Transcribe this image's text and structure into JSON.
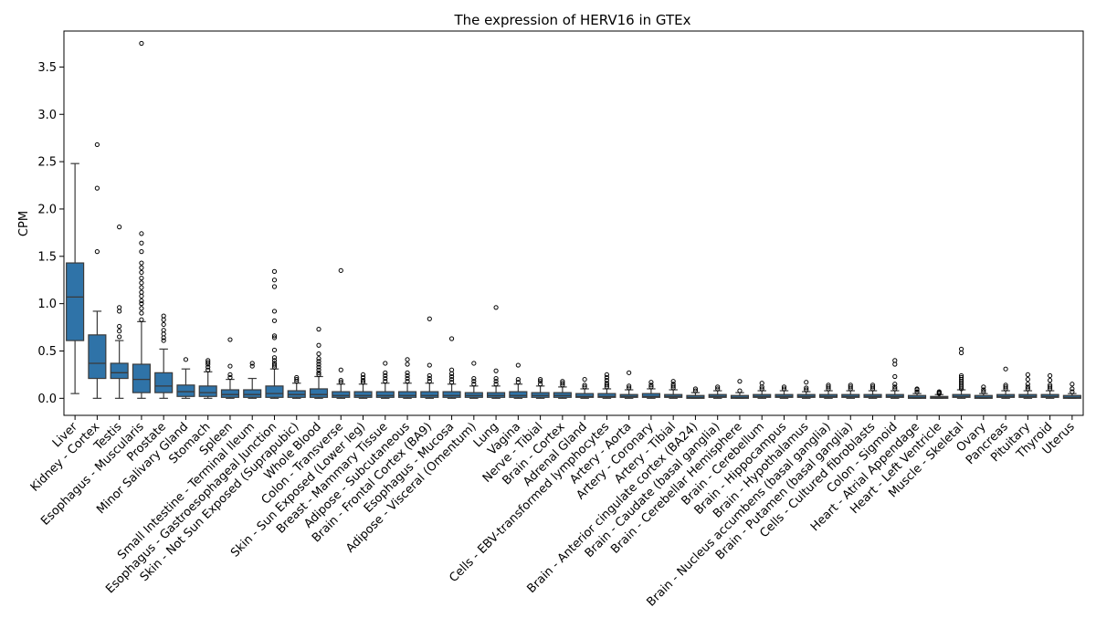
{
  "chart_data": {
    "type": "box",
    "title": "The expression of HERV16 in GTEx",
    "xlabel": "",
    "ylabel": "CPM",
    "ylim": [
      -0.18,
      3.88
    ],
    "yticks": [
      0.0,
      0.5,
      1.0,
      1.5,
      2.0,
      2.5,
      3.0,
      3.5
    ],
    "ytick_labels": [
      "0.0",
      "0.5",
      "1.0",
      "1.5",
      "2.0",
      "2.5",
      "3.0",
      "3.5"
    ],
    "grid": false,
    "box_color": "#2f73a8",
    "categories": [
      "Liver",
      "Kidney - Cortex",
      "Testis",
      "Esophagus - Muscularis",
      "Prostate",
      "Minor Salivary Gland",
      "Stomach",
      "Spleen",
      "Small Intestine - Terminal Ileum",
      "Esophagus - Gastroesophageal Junction",
      "Skin - Not Sun Exposed (Suprapubic)",
      "Whole Blood",
      "Colon - Transverse",
      "Skin - Sun Exposed (Lower leg)",
      "Breast - Mammary Tissue",
      "Adipose - Subcutaneous",
      "Brain - Frontal Cortex (BA9)",
      "Esophagus - Mucosa",
      "Adipose - Visceral (Omentum)",
      "Lung",
      "Vagina",
      "Nerve - Tibial",
      "Brain - Cortex",
      "Adrenal Gland",
      "Cells - EBV-transformed lymphocytes",
      "Artery - Aorta",
      "Artery - Coronary",
      "Artery - Tibial",
      "Brain - Anterior cingulate cortex (BA24)",
      "Brain - Caudate (basal ganglia)",
      "Brain - Cerebellar Hemisphere",
      "Brain - Cerebellum",
      "Brain - Hippocampus",
      "Brain - Hypothalamus",
      "Brain - Nucleus accumbens (basal ganglia)",
      "Brain - Putamen (basal ganglia)",
      "Cells - Cultured fibroblasts",
      "Colon - Sigmoid",
      "Heart - Atrial Appendage",
      "Heart - Left Ventricle",
      "Muscle - Skeletal",
      "Ovary",
      "Pancreas",
      "Pituitary",
      "Thyroid",
      "Uterus"
    ],
    "boxes": [
      {
        "whislo": 0.05,
        "q1": 0.61,
        "med": 1.07,
        "q3": 1.43,
        "whishi": 2.48,
        "fliers": []
      },
      {
        "whislo": 0.0,
        "q1": 0.21,
        "med": 0.37,
        "q3": 0.67,
        "whishi": 0.92,
        "fliers": [
          1.55,
          2.22,
          2.68
        ]
      },
      {
        "whislo": 0.0,
        "q1": 0.21,
        "med": 0.27,
        "q3": 0.37,
        "whishi": 0.61,
        "fliers": [
          0.65,
          0.71,
          0.76,
          0.92,
          0.96,
          1.81
        ]
      },
      {
        "whislo": 0.0,
        "q1": 0.06,
        "med": 0.2,
        "q3": 0.36,
        "whishi": 0.81,
        "fliers": [
          0.83,
          0.9,
          0.95,
          1.0,
          1.03,
          1.08,
          1.12,
          1.17,
          1.22,
          1.27,
          1.33,
          1.38,
          1.43,
          1.55,
          1.64,
          1.74,
          3.75
        ]
      },
      {
        "whislo": 0.0,
        "q1": 0.06,
        "med": 0.13,
        "q3": 0.27,
        "whishi": 0.52,
        "fliers": [
          0.61,
          0.64,
          0.68,
          0.72,
          0.78,
          0.83,
          0.87
        ]
      },
      {
        "whislo": 0.0,
        "q1": 0.02,
        "med": 0.07,
        "q3": 0.14,
        "whishi": 0.31,
        "fliers": [
          0.41
        ]
      },
      {
        "whislo": 0.0,
        "q1": 0.02,
        "med": 0.06,
        "q3": 0.13,
        "whishi": 0.28,
        "fliers": [
          0.3,
          0.33,
          0.36,
          0.38,
          0.4
        ]
      },
      {
        "whislo": 0.0,
        "q1": 0.01,
        "med": 0.04,
        "q3": 0.09,
        "whishi": 0.2,
        "fliers": [
          0.22,
          0.25,
          0.34,
          0.62
        ]
      },
      {
        "whislo": 0.0,
        "q1": 0.01,
        "med": 0.04,
        "q3": 0.09,
        "whishi": 0.21,
        "fliers": [
          0.34,
          0.37
        ]
      },
      {
        "whislo": 0.0,
        "q1": 0.01,
        "med": 0.05,
        "q3": 0.13,
        "whishi": 0.31,
        "fliers": [
          0.33,
          0.35,
          0.37,
          0.4,
          0.43,
          0.51,
          0.64,
          0.66,
          0.82,
          0.92,
          1.18,
          1.25,
          1.34
        ]
      },
      {
        "whislo": 0.0,
        "q1": 0.01,
        "med": 0.04,
        "q3": 0.08,
        "whishi": 0.16,
        "fliers": [
          0.18,
          0.2,
          0.22
        ]
      },
      {
        "whislo": 0.0,
        "q1": 0.01,
        "med": 0.04,
        "q3": 0.1,
        "whishi": 0.23,
        "fliers": [
          0.25,
          0.27,
          0.3,
          0.33,
          0.36,
          0.39,
          0.42,
          0.47,
          0.56,
          0.73
        ]
      },
      {
        "whislo": 0.0,
        "q1": 0.01,
        "med": 0.03,
        "q3": 0.07,
        "whishi": 0.15,
        "fliers": [
          0.17,
          0.19,
          0.3,
          1.35
        ]
      },
      {
        "whislo": 0.0,
        "q1": 0.01,
        "med": 0.03,
        "q3": 0.07,
        "whishi": 0.15,
        "fliers": [
          0.17,
          0.19,
          0.22,
          0.25
        ]
      },
      {
        "whislo": 0.0,
        "q1": 0.01,
        "med": 0.03,
        "q3": 0.07,
        "whishi": 0.16,
        "fliers": [
          0.18,
          0.21,
          0.24,
          0.27,
          0.37
        ]
      },
      {
        "whislo": 0.0,
        "q1": 0.01,
        "med": 0.03,
        "q3": 0.07,
        "whishi": 0.16,
        "fliers": [
          0.18,
          0.21,
          0.24,
          0.27,
          0.36,
          0.41
        ]
      },
      {
        "whislo": 0.0,
        "q1": 0.01,
        "med": 0.03,
        "q3": 0.07,
        "whishi": 0.16,
        "fliers": [
          0.18,
          0.21,
          0.24,
          0.35,
          0.84
        ]
      },
      {
        "whislo": 0.0,
        "q1": 0.01,
        "med": 0.03,
        "q3": 0.07,
        "whishi": 0.15,
        "fliers": [
          0.17,
          0.2,
          0.23,
          0.26,
          0.3,
          0.63
        ]
      },
      {
        "whislo": 0.0,
        "q1": 0.01,
        "med": 0.03,
        "q3": 0.06,
        "whishi": 0.13,
        "fliers": [
          0.15,
          0.18,
          0.21,
          0.37
        ]
      },
      {
        "whislo": 0.0,
        "q1": 0.01,
        "med": 0.03,
        "q3": 0.06,
        "whishi": 0.13,
        "fliers": [
          0.15,
          0.18,
          0.21,
          0.29,
          0.96
        ]
      },
      {
        "whislo": 0.0,
        "q1": 0.01,
        "med": 0.03,
        "q3": 0.07,
        "whishi": 0.15,
        "fliers": [
          0.17,
          0.2,
          0.35
        ]
      },
      {
        "whislo": 0.0,
        "q1": 0.01,
        "med": 0.03,
        "q3": 0.06,
        "whishi": 0.13,
        "fliers": [
          0.15,
          0.18,
          0.2
        ]
      },
      {
        "whislo": 0.0,
        "q1": 0.01,
        "med": 0.03,
        "q3": 0.06,
        "whishi": 0.12,
        "fliers": [
          0.14,
          0.16,
          0.18
        ]
      },
      {
        "whislo": 0.0,
        "q1": 0.01,
        "med": 0.02,
        "q3": 0.05,
        "whishi": 0.1,
        "fliers": [
          0.12,
          0.14,
          0.2
        ]
      },
      {
        "whislo": 0.0,
        "q1": 0.01,
        "med": 0.02,
        "q3": 0.05,
        "whishi": 0.1,
        "fliers": [
          0.12,
          0.14,
          0.16,
          0.19,
          0.22,
          0.25
        ]
      },
      {
        "whislo": 0.0,
        "q1": 0.01,
        "med": 0.02,
        "q3": 0.04,
        "whishi": 0.09,
        "fliers": [
          0.11,
          0.13,
          0.27
        ]
      },
      {
        "whislo": 0.0,
        "q1": 0.01,
        "med": 0.02,
        "q3": 0.05,
        "whishi": 0.1,
        "fliers": [
          0.12,
          0.14,
          0.17
        ]
      },
      {
        "whislo": 0.0,
        "q1": 0.01,
        "med": 0.02,
        "q3": 0.04,
        "whishi": 0.09,
        "fliers": [
          0.11,
          0.13,
          0.15,
          0.18
        ]
      },
      {
        "whislo": 0.0,
        "q1": 0.0,
        "med": 0.01,
        "q3": 0.03,
        "whishi": 0.06,
        "fliers": [
          0.08,
          0.1
        ]
      },
      {
        "whislo": 0.0,
        "q1": 0.01,
        "med": 0.02,
        "q3": 0.04,
        "whishi": 0.08,
        "fliers": [
          0.1,
          0.12
        ]
      },
      {
        "whislo": 0.0,
        "q1": 0.0,
        "med": 0.01,
        "q3": 0.03,
        "whishi": 0.06,
        "fliers": [
          0.08,
          0.18
        ]
      },
      {
        "whislo": 0.0,
        "q1": 0.01,
        "med": 0.02,
        "q3": 0.04,
        "whishi": 0.08,
        "fliers": [
          0.1,
          0.12,
          0.16
        ]
      },
      {
        "whislo": 0.0,
        "q1": 0.01,
        "med": 0.02,
        "q3": 0.04,
        "whishi": 0.08,
        "fliers": [
          0.1,
          0.12
        ]
      },
      {
        "whislo": 0.0,
        "q1": 0.01,
        "med": 0.02,
        "q3": 0.04,
        "whishi": 0.07,
        "fliers": [
          0.09,
          0.11,
          0.17
        ]
      },
      {
        "whislo": 0.0,
        "q1": 0.01,
        "med": 0.02,
        "q3": 0.04,
        "whishi": 0.08,
        "fliers": [
          0.1,
          0.12,
          0.14
        ]
      },
      {
        "whislo": 0.0,
        "q1": 0.01,
        "med": 0.02,
        "q3": 0.04,
        "whishi": 0.08,
        "fliers": [
          0.1,
          0.12,
          0.14
        ]
      },
      {
        "whislo": 0.0,
        "q1": 0.01,
        "med": 0.02,
        "q3": 0.04,
        "whishi": 0.08,
        "fliers": [
          0.1,
          0.12,
          0.14
        ]
      },
      {
        "whislo": 0.0,
        "q1": 0.01,
        "med": 0.02,
        "q3": 0.04,
        "whishi": 0.08,
        "fliers": [
          0.1,
          0.12,
          0.15,
          0.23,
          0.36,
          0.4
        ]
      },
      {
        "whislo": 0.0,
        "q1": 0.0,
        "med": 0.01,
        "q3": 0.03,
        "whishi": 0.05,
        "fliers": [
          0.07,
          0.09,
          0.1
        ]
      },
      {
        "whislo": 0.0,
        "q1": 0.0,
        "med": 0.01,
        "q3": 0.02,
        "whishi": 0.04,
        "fliers": [
          0.05,
          0.06,
          0.07
        ]
      },
      {
        "whislo": 0.0,
        "q1": 0.01,
        "med": 0.02,
        "q3": 0.04,
        "whishi": 0.09,
        "fliers": [
          0.1,
          0.12,
          0.14,
          0.16,
          0.18,
          0.2,
          0.22,
          0.24,
          0.48,
          0.52
        ]
      },
      {
        "whislo": 0.0,
        "q1": 0.0,
        "med": 0.01,
        "q3": 0.03,
        "whishi": 0.05,
        "fliers": [
          0.07,
          0.09,
          0.12
        ]
      },
      {
        "whislo": 0.0,
        "q1": 0.01,
        "med": 0.02,
        "q3": 0.04,
        "whishi": 0.08,
        "fliers": [
          0.1,
          0.12,
          0.14,
          0.31
        ]
      },
      {
        "whislo": 0.0,
        "q1": 0.01,
        "med": 0.02,
        "q3": 0.04,
        "whishi": 0.08,
        "fliers": [
          0.1,
          0.12,
          0.15,
          0.2,
          0.25
        ]
      },
      {
        "whislo": 0.0,
        "q1": 0.01,
        "med": 0.02,
        "q3": 0.04,
        "whishi": 0.08,
        "fliers": [
          0.1,
          0.12,
          0.14,
          0.19,
          0.24
        ]
      },
      {
        "whislo": 0.0,
        "q1": 0.0,
        "med": 0.01,
        "q3": 0.03,
        "whishi": 0.05,
        "fliers": [
          0.07,
          0.1,
          0.15
        ]
      }
    ]
  }
}
